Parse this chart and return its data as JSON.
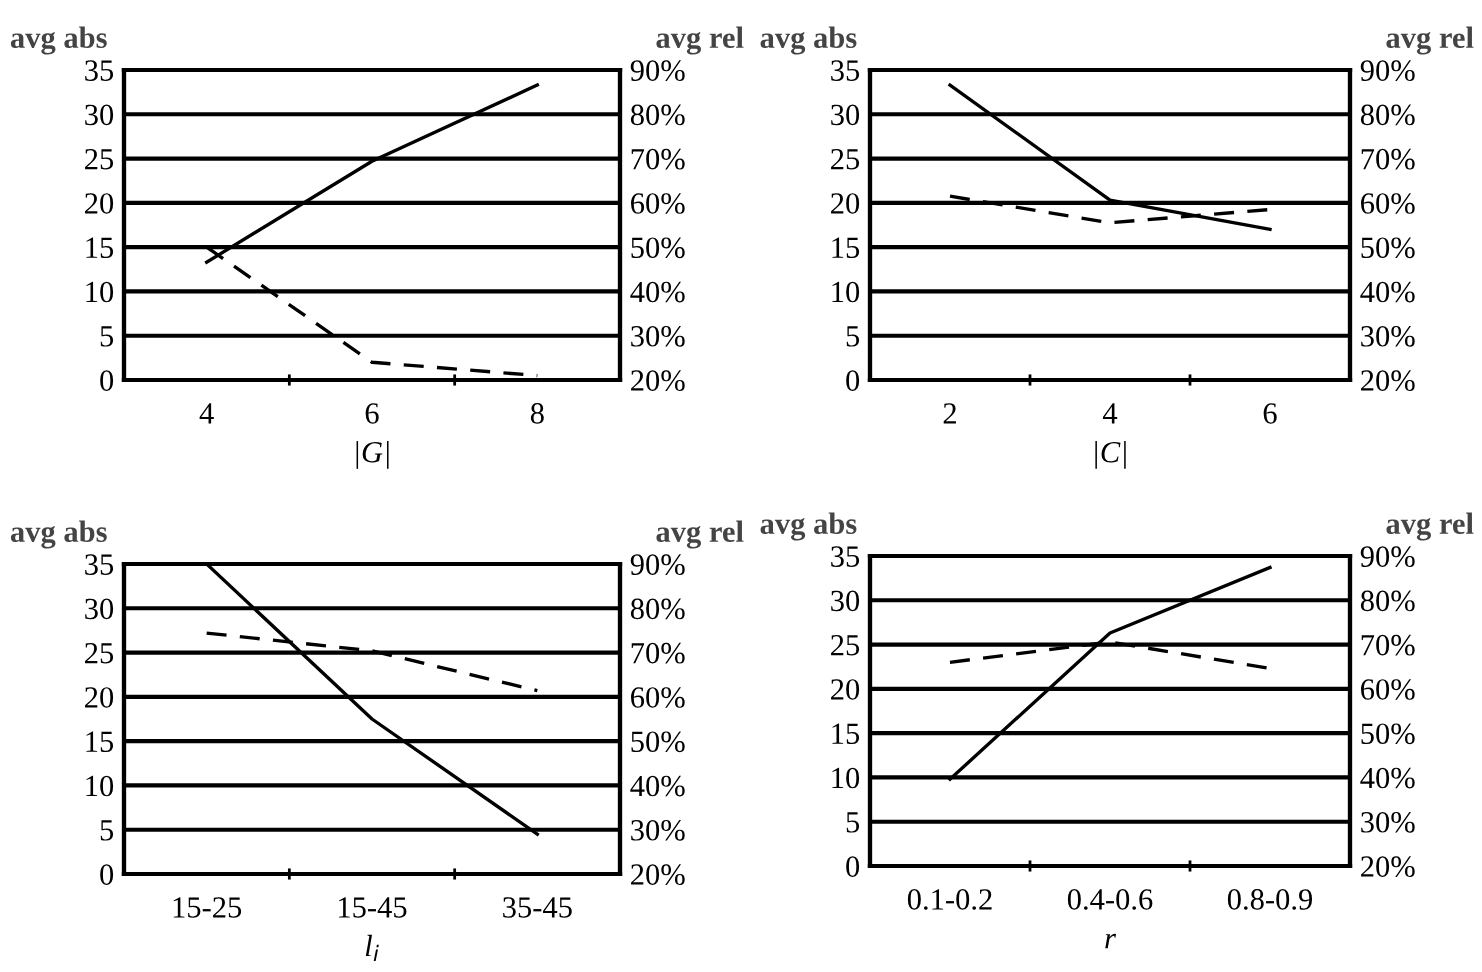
{
  "chart_data": [
    {
      "type": "line",
      "categories": [
        "4",
        "6",
        "8"
      ],
      "xlabel": "|G|",
      "ylabel": "avg abs",
      "y2label": "avg rel",
      "ylim": [
        0,
        35
      ],
      "yticks": [
        0,
        5,
        10,
        15,
        20,
        25,
        30,
        35
      ],
      "y2lim": [
        20,
        90
      ],
      "y2ticks": [
        {
          "value": 20,
          "label": "20%"
        },
        {
          "value": 30,
          "label": "30%"
        },
        {
          "value": 40,
          "label": "40%"
        },
        {
          "value": 50,
          "label": "50%"
        },
        {
          "value": 60,
          "label": "60%"
        },
        {
          "value": 70,
          "label": "70%"
        },
        {
          "value": 80,
          "label": "80%"
        },
        {
          "value": 90,
          "label": "90%"
        }
      ],
      "grid": "y",
      "marker": "none",
      "series": [
        {
          "color": "#000000",
          "line_style": "solid",
          "values": [
            13.3,
            24.7,
            33.3
          ]
        },
        {
          "color": "#000000",
          "line_style": "dashed",
          "axis": "y2",
          "values": [
            50,
            24,
            21
          ]
        }
      ]
    },
    {
      "type": "line",
      "categories": [
        "2",
        "4",
        "6"
      ],
      "xlabel": "|C|",
      "ylabel": "avg abs",
      "y2label": "avg rel",
      "ylim": [
        0,
        35
      ],
      "yticks": [
        0,
        5,
        10,
        15,
        20,
        25,
        30,
        35
      ],
      "y2lim": [
        20,
        90
      ],
      "y2ticks": [
        {
          "value": 20,
          "label": "20%"
        },
        {
          "value": 30,
          "label": "30%"
        },
        {
          "value": 40,
          "label": "40%"
        },
        {
          "value": 50,
          "label": "50%"
        },
        {
          "value": 60,
          "label": "60%"
        },
        {
          "value": 70,
          "label": "70%"
        },
        {
          "value": 80,
          "label": "80%"
        },
        {
          "value": 90,
          "label": "90%"
        }
      ],
      "grid": "y",
      "marker": "none",
      "series": [
        {
          "color": "#000000",
          "line_style": "solid",
          "values": [
            33.3,
            20.3,
            17
          ]
        },
        {
          "color": "#000000",
          "line_style": "dashed",
          "axis": "y2",
          "values": [
            61.5,
            55.5,
            58.5
          ]
        }
      ]
    },
    {
      "type": "line",
      "categories": [
        "15-25",
        "15-45",
        "35-45"
      ],
      "xlabel": "l$_{i}$",
      "ylabel": "avg abs",
      "y2label": "avg rel",
      "ylim": [
        0,
        35
      ],
      "yticks": [
        0,
        5,
        10,
        15,
        20,
        25,
        30,
        35
      ],
      "y2lim": [
        20,
        90
      ],
      "y2ticks": [
        {
          "value": 20,
          "label": "20%"
        },
        {
          "value": 30,
          "label": "30%"
        },
        {
          "value": 40,
          "label": "40%"
        },
        {
          "value": 50,
          "label": "50%"
        },
        {
          "value": 60,
          "label": "60%"
        },
        {
          "value": 70,
          "label": "70%"
        },
        {
          "value": 80,
          "label": "80%"
        },
        {
          "value": 90,
          "label": "90%"
        }
      ],
      "grid": "y",
      "marker": "none",
      "series": [
        {
          "color": "#000000",
          "line_style": "solid",
          "values": [
            35,
            17.5,
            4.5
          ]
        },
        {
          "color": "#000000",
          "line_style": "dashed",
          "axis": "y2",
          "values": [
            74.4,
            70.4,
            61.4
          ]
        }
      ]
    },
    {
      "type": "line",
      "categories": [
        "0.1-0.2",
        "0.4-0.6",
        "0.8-0.9"
      ],
      "xlabel": "r",
      "ylabel": "avg abs",
      "y2label": "avg rel",
      "ylim": [
        0,
        35
      ],
      "yticks": [
        0,
        5,
        10,
        15,
        20,
        25,
        30,
        35
      ],
      "y2lim": [
        20,
        90
      ],
      "y2ticks": [
        {
          "value": 20,
          "label": "20%"
        },
        {
          "value": 30,
          "label": "30%"
        },
        {
          "value": 40,
          "label": "40%"
        },
        {
          "value": 50,
          "label": "50%"
        },
        {
          "value": 60,
          "label": "60%"
        },
        {
          "value": 70,
          "label": "70%"
        },
        {
          "value": 80,
          "label": "80%"
        },
        {
          "value": 90,
          "label": "90%"
        }
      ],
      "grid": "y",
      "marker": "none",
      "series": [
        {
          "color": "#000000",
          "line_style": "solid",
          "values": [
            9.8,
            26.3,
            33.7
          ]
        },
        {
          "color": "#000000",
          "line_style": "dashed",
          "axis": "y2",
          "values": [
            66,
            70.6,
            64.6
          ]
        }
      ]
    }
  ]
}
